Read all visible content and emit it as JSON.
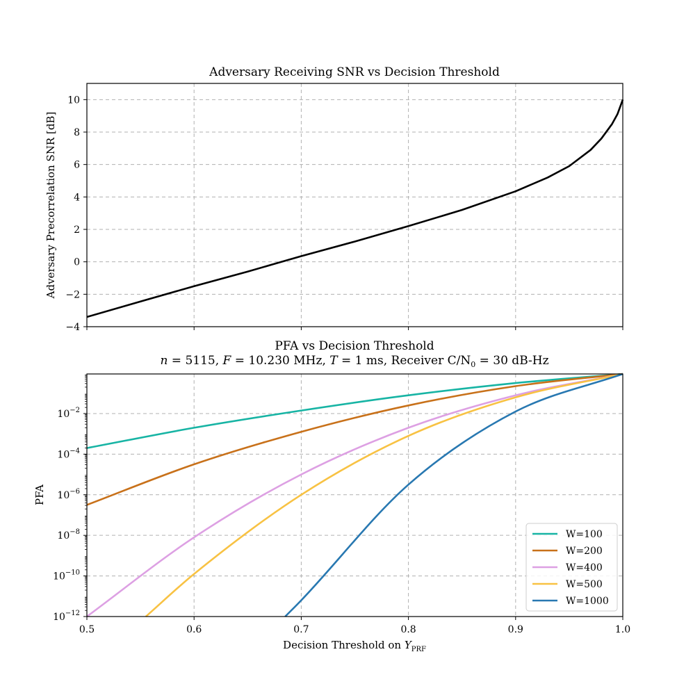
{
  "chart_data": [
    {
      "type": "line",
      "title": "Adversary Receiving SNR vs Decision Threshold",
      "xlabel": "",
      "ylabel": "Adversary Precorrelation SNR [dB]",
      "xlim": [
        0.5,
        1.0
      ],
      "ylim": [
        -4,
        11
      ],
      "yticks": [
        -4,
        -2,
        0,
        2,
        4,
        6,
        8,
        10
      ],
      "ytick_labels": [
        "−4",
        "−2",
        "0",
        "2",
        "4",
        "6",
        "8",
        "10"
      ],
      "xticks": [
        0.5,
        0.6,
        0.7,
        0.8,
        0.9,
        1.0
      ],
      "grid": true,
      "series": [
        {
          "color": "#000000",
          "x": [
            0.5,
            0.55,
            0.6,
            0.65,
            0.7,
            0.75,
            0.8,
            0.85,
            0.9,
            0.93,
            0.95,
            0.97,
            0.98,
            0.99,
            0.995,
            1.0
          ],
          "y": [
            -3.4,
            -2.45,
            -1.5,
            -0.6,
            0.35,
            1.25,
            2.2,
            3.2,
            4.35,
            5.2,
            5.9,
            6.9,
            7.6,
            8.5,
            9.1,
            10.0
          ]
        }
      ]
    },
    {
      "type": "line",
      "title": "PFA vs Decision Threshold",
      "subtitle": "n = 5115, F = 10.230 MHz, T = 1 ms, Receiver C/N0 = 30 dB-Hz",
      "xlabel": "Decision Threshold on YPRF",
      "ylabel": "PFA",
      "xlim": [
        0.5,
        1.0
      ],
      "xticks": [
        0.5,
        0.6,
        0.7,
        0.8,
        0.9,
        1.0
      ],
      "xtick_labels": [
        "0.5",
        "0.6",
        "0.7",
        "0.8",
        "0.9",
        "1.0"
      ],
      "yscale": "log",
      "ylim_log10": [
        -12,
        -0.05
      ],
      "yticks_log10": [
        -12,
        -10,
        -8,
        -6,
        -4,
        -2
      ],
      "ytick_labels": [
        "10",
        "10",
        "10",
        "10",
        "10",
        "10"
      ],
      "ytick_exponents": [
        "−12",
        "−10",
        "−8",
        "−6",
        "−4",
        "−2"
      ],
      "grid": true,
      "legend": "lower-right",
      "series": [
        {
          "name": "W=100",
          "color": "#17b4a4",
          "x": [
            0.5,
            0.6,
            0.7,
            0.8,
            0.9,
            1.0
          ],
          "log10_y": [
            -3.7,
            -2.7,
            -1.85,
            -1.1,
            -0.5,
            -0.05
          ]
        },
        {
          "name": "W=200",
          "color": "#c8711a",
          "x": [
            0.5,
            0.6,
            0.7,
            0.8,
            0.9,
            1.0
          ],
          "log10_y": [
            -6.5,
            -4.5,
            -2.9,
            -1.6,
            -0.65,
            -0.05
          ]
        },
        {
          "name": "W=400",
          "color": "#dda0e3",
          "x": [
            0.5,
            0.6,
            0.7,
            0.8,
            0.9,
            1.0
          ],
          "log10_y": [
            -12.0,
            -8.1,
            -5.0,
            -2.7,
            -1.1,
            -0.05
          ]
        },
        {
          "name": "W=500",
          "color": "#f8c243",
          "x": [
            0.555,
            0.6,
            0.7,
            0.8,
            0.9,
            1.0
          ],
          "log10_y": [
            -12.0,
            -9.9,
            -6.0,
            -3.1,
            -1.2,
            -0.05
          ]
        },
        {
          "name": "W=1000",
          "color": "#2878b1",
          "x": [
            0.685,
            0.7,
            0.8,
            0.9,
            1.0
          ],
          "log10_y": [
            -12.0,
            -11.2,
            -5.5,
            -1.9,
            -0.05
          ]
        }
      ]
    }
  ]
}
